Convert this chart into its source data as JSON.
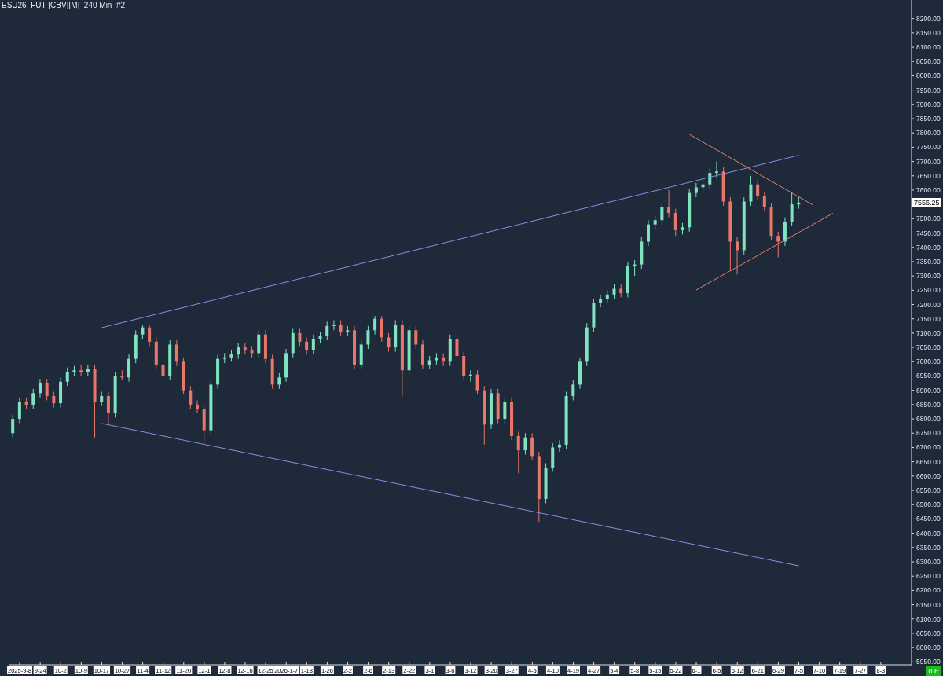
{
  "chart_data": {
    "type": "candlestick",
    "title": "ESU26_FUT [CBV][M]  240 Min  #2",
    "categories": [
      null,
      "2025-9-8",
      null,
      null,
      "9-24",
      null,
      null,
      "10-2",
      null,
      null,
      "10-9",
      null,
      null,
      "10-17",
      null,
      null,
      "10-27",
      null,
      null,
      "11-4",
      null,
      null,
      "11-12",
      null,
      null,
      "11-20",
      null,
      null,
      "12-1",
      null,
      null,
      "12-8",
      null,
      null,
      "12-16",
      null,
      null,
      "12-25",
      null,
      null,
      "2026-1-7",
      null,
      null,
      "1-18",
      null,
      null,
      "1-26",
      null,
      null,
      "2-2",
      null,
      null,
      "2-6",
      null,
      null,
      "2-13",
      null,
      null,
      "2-22",
      null,
      null,
      "3-1",
      null,
      null,
      "3-6",
      null,
      null,
      "3-12",
      null,
      null,
      "3-20",
      null,
      null,
      "3-27",
      null,
      null,
      "4-5",
      null,
      null,
      "4-10",
      null,
      null,
      "4-19",
      null,
      null,
      "4-27",
      null,
      null,
      "5-4",
      null,
      null,
      "5-8",
      null,
      null,
      "5-15",
      null,
      null,
      "5-22",
      null,
      null,
      "6-1",
      null,
      null,
      "6-5",
      null,
      null,
      "6-12",
      null,
      null,
      "6-21",
      null,
      null,
      "6-29",
      null,
      null,
      "7-5",
      null,
      null,
      "7-10",
      null,
      null,
      "7-19",
      null,
      null,
      "7-27",
      null,
      null,
      "8-3",
      null,
      null,
      null,
      null
    ],
    "ohlc": [
      [
        6750,
        6815,
        6735,
        6800
      ],
      [
        6800,
        6875,
        6785,
        6860
      ],
      [
        6860,
        6875,
        6835,
        6850
      ],
      [
        6850,
        6905,
        6835,
        6890
      ],
      [
        6890,
        6940,
        6875,
        6925
      ],
      [
        6925,
        6940,
        6865,
        6880
      ],
      [
        6880,
        6895,
        6840,
        6855
      ],
      [
        6855,
        6945,
        6840,
        6930
      ],
      [
        6930,
        6980,
        6915,
        6965
      ],
      [
        6965,
        6985,
        6950,
        6970
      ],
      [
        6970,
        6990,
        6950,
        6965
      ],
      [
        6965,
        6990,
        6950,
        6975
      ],
      [
        6975,
        6990,
        6735,
        6860
      ],
      [
        6860,
        6895,
        6845,
        6880
      ],
      [
        6880,
        6895,
        6780,
        6820
      ],
      [
        6820,
        6965,
        6805,
        6950
      ],
      [
        6950,
        6970,
        6935,
        6945
      ],
      [
        6945,
        7025,
        6930,
        7010
      ],
      [
        7010,
        7110,
        6995,
        7095
      ],
      [
        7095,
        7130,
        7080,
        7120
      ],
      [
        7120,
        7130,
        7055,
        7070
      ],
      [
        7070,
        7085,
        6975,
        6990
      ],
      [
        6990,
        7005,
        6845,
        6950
      ],
      [
        6950,
        7075,
        6935,
        7060
      ],
      [
        7060,
        7075,
        6985,
        7000
      ],
      [
        7000,
        7015,
        6885,
        6900
      ],
      [
        6900,
        6915,
        6835,
        6850
      ],
      [
        6850,
        6865,
        6820,
        6835
      ],
      [
        6835,
        6850,
        6715,
        6760
      ],
      [
        6760,
        6935,
        6745,
        6920
      ],
      [
        6920,
        7025,
        6905,
        7010
      ],
      [
        7010,
        7030,
        6995,
        7015
      ],
      [
        7015,
        7040,
        7000,
        7025
      ],
      [
        7025,
        7065,
        7010,
        7050
      ],
      [
        7050,
        7065,
        7025,
        7040
      ],
      [
        7040,
        7055,
        7015,
        7030
      ],
      [
        7030,
        7110,
        7015,
        7095
      ],
      [
        7095,
        7110,
        6995,
        7010
      ],
      [
        7010,
        7025,
        6905,
        6920
      ],
      [
        6920,
        6960,
        6905,
        6945
      ],
      [
        6945,
        7045,
        6930,
        7030
      ],
      [
        7030,
        7115,
        7015,
        7100
      ],
      [
        7100,
        7115,
        7055,
        7070
      ],
      [
        7070,
        7085,
        7025,
        7040
      ],
      [
        7040,
        7095,
        7025,
        7080
      ],
      [
        7080,
        7105,
        7065,
        7090
      ],
      [
        7090,
        7140,
        7075,
        7125
      ],
      [
        7125,
        7145,
        7110,
        7130
      ],
      [
        7130,
        7145,
        7090,
        7105
      ],
      [
        7105,
        7125,
        7090,
        7110
      ],
      [
        7110,
        7125,
        6975,
        6990
      ],
      [
        6990,
        7075,
        6975,
        7060
      ],
      [
        7060,
        7125,
        7045,
        7110
      ],
      [
        7110,
        7160,
        7095,
        7150
      ],
      [
        7150,
        7160,
        7070,
        7085
      ],
      [
        7085,
        7100,
        7035,
        7050
      ],
      [
        7050,
        7145,
        7035,
        7130
      ],
      [
        7130,
        7145,
        6880,
        6970
      ],
      [
        6970,
        7125,
        6955,
        7110
      ],
      [
        7110,
        7125,
        7045,
        7060
      ],
      [
        7060,
        7075,
        6975,
        6990
      ],
      [
        6990,
        7020,
        6975,
        7005
      ],
      [
        7005,
        7030,
        6990,
        7015
      ],
      [
        7015,
        7030,
        6985,
        7000
      ],
      [
        7000,
        7095,
        6985,
        7080
      ],
      [
        7080,
        7095,
        7005,
        7020
      ],
      [
        7020,
        7035,
        6935,
        6950
      ],
      [
        6950,
        6970,
        6930,
        6955
      ],
      [
        6955,
        6970,
        6885,
        6900
      ],
      [
        6900,
        6915,
        6710,
        6780
      ],
      [
        6780,
        6905,
        6765,
        6890
      ],
      [
        6890,
        6905,
        6785,
        6800
      ],
      [
        6800,
        6875,
        6785,
        6860
      ],
      [
        6860,
        6875,
        6725,
        6740
      ],
      [
        6740,
        6755,
        6610,
        6690
      ],
      [
        6690,
        6750,
        6675,
        6735
      ],
      [
        6735,
        6750,
        6655,
        6670
      ],
      [
        6670,
        6685,
        6440,
        6520
      ],
      [
        6520,
        6645,
        6505,
        6630
      ],
      [
        6630,
        6715,
        6615,
        6700
      ],
      [
        6700,
        6725,
        6685,
        6710
      ],
      [
        6710,
        6895,
        6695,
        6880
      ],
      [
        6880,
        6935,
        6865,
        6920
      ],
      [
        6920,
        7015,
        6905,
        7000
      ],
      [
        7000,
        7135,
        6985,
        7120
      ],
      [
        7120,
        7220,
        7105,
        7205
      ],
      [
        7205,
        7235,
        7190,
        7220
      ],
      [
        7220,
        7250,
        7205,
        7235
      ],
      [
        7235,
        7270,
        7220,
        7255
      ],
      [
        7255,
        7270,
        7225,
        7240
      ],
      [
        7240,
        7350,
        7225,
        7335
      ],
      [
        7335,
        7355,
        7300,
        7340
      ],
      [
        7340,
        7435,
        7325,
        7420
      ],
      [
        7420,
        7495,
        7405,
        7480
      ],
      [
        7480,
        7510,
        7465,
        7495
      ],
      [
        7495,
        7555,
        7480,
        7540
      ],
      [
        7540,
        7600,
        7505,
        7520
      ],
      [
        7520,
        7535,
        7440,
        7460
      ],
      [
        7460,
        7485,
        7445,
        7470
      ],
      [
        7470,
        7605,
        7455,
        7590
      ],
      [
        7590,
        7625,
        7575,
        7610
      ],
      [
        7610,
        7640,
        7595,
        7620
      ],
      [
        7620,
        7675,
        7605,
        7660
      ],
      [
        7660,
        7700,
        7645,
        7665
      ],
      [
        7665,
        7680,
        7545,
        7560
      ],
      [
        7560,
        7575,
        7320,
        7420
      ],
      [
        7420,
        7435,
        7305,
        7390
      ],
      [
        7390,
        7575,
        7375,
        7560
      ],
      [
        7560,
        7650,
        7545,
        7620
      ],
      [
        7620,
        7635,
        7565,
        7580
      ],
      [
        7580,
        7595,
        7525,
        7540
      ],
      [
        7540,
        7555,
        7425,
        7440
      ],
      [
        7440,
        7455,
        7365,
        7420
      ],
      [
        7420,
        7505,
        7405,
        7490
      ],
      [
        7490,
        7590,
        7475,
        7550
      ],
      [
        7550,
        7580,
        7535,
        7556.25
      ],
      null,
      null,
      null,
      null,
      null,
      null,
      null,
      null,
      null,
      null,
      null,
      null,
      null,
      null,
      null,
      null
    ],
    "colors": [
      "#7fe3c0",
      "#7fe3c0",
      "#e8776a",
      "#7fe3c0",
      "#7fe3c0",
      "#e8776a",
      "#e8776a",
      "#7fe3c0",
      "#7fe3c0",
      "#7fe3c0",
      "#e8776a",
      "#7fe3c0",
      "#e8776a",
      "#7fe3c0",
      "#e8776a",
      "#7fe3c0",
      "#e8776a",
      "#7fe3c0",
      "#7fe3c0",
      "#7fe3c0",
      "#e8776a",
      "#e8776a",
      "#e8776a",
      "#7fe3c0",
      "#e8776a",
      "#e8776a",
      "#e8776a",
      "#e8776a",
      "#e8776a",
      "#7fe3c0",
      "#7fe3c0",
      "#7fe3c0",
      "#7fe3c0",
      "#7fe3c0",
      "#e8776a",
      "#e8776a",
      "#7fe3c0",
      "#e8776a",
      "#e8776a",
      "#7fe3c0",
      "#7fe3c0",
      "#7fe3c0",
      "#e8776a",
      "#e8776a",
      "#7fe3c0",
      "#7fe3c0",
      "#7fe3c0",
      "#7fe3c0",
      "#e8776a",
      "#7fe3c0",
      "#e8776a",
      "#7fe3c0",
      "#7fe3c0",
      "#7fe3c0",
      "#e8776a",
      "#e8776a",
      "#7fe3c0",
      "#e8776a",
      "#7fe3c0",
      "#e8776a",
      "#e8776a",
      "#7fe3c0",
      "#7fe3c0",
      "#e8776a",
      "#7fe3c0",
      "#e8776a",
      "#e8776a",
      "#7fe3c0",
      "#e8776a",
      "#e8776a",
      "#7fe3c0",
      "#e8776a",
      "#7fe3c0",
      "#e8776a",
      "#e8776a",
      "#7fe3c0",
      "#e8776a",
      "#e8776a",
      "#7fe3c0",
      "#7fe3c0",
      "#7fe3c0",
      "#7fe3c0",
      "#7fe3c0",
      "#7fe3c0",
      "#7fe3c0",
      "#7fe3c0",
      "#7fe3c0",
      "#7fe3c0",
      "#7fe3c0",
      "#e8776a",
      "#7fe3c0",
      "#7fe3c0",
      "#7fe3c0",
      "#7fe3c0",
      "#7fe3c0",
      "#7fe3c0",
      "#e8776a",
      "#e8776a",
      "#7fe3c0",
      "#7fe3c0",
      "#7fe3c0",
      "#7fe3c0",
      "#7fe3c0",
      "#7fe3c0",
      "#e8776a",
      "#e8776a",
      "#e8776a",
      "#7fe3c0",
      "#7fe3c0",
      "#e8776a",
      "#e8776a",
      "#e8776a",
      "#e8776a",
      "#7fe3c0",
      "#7fe3c0",
      "#7fe3c0",
      null,
      null,
      null,
      null,
      null,
      null,
      null,
      null,
      null,
      null,
      null,
      null,
      null,
      null,
      null,
      null
    ],
    "series": [
      {
        "type": "line",
        "color": "#8f8ae6",
        "values": [
          null,
          null,
          null,
          null,
          null,
          null,
          null,
          null,
          null,
          null,
          null,
          null,
          null,
          7119,
          null,
          null,
          null,
          null,
          null,
          null,
          null,
          null,
          null,
          null,
          null,
          null,
          null,
          null,
          null,
          null,
          null,
          null,
          null,
          null,
          null,
          null,
          null,
          null,
          null,
          null,
          null,
          null,
          null,
          null,
          null,
          null,
          null,
          null,
          null,
          null,
          null,
          null,
          null,
          null,
          null,
          null,
          null,
          null,
          null,
          null,
          null,
          null,
          null,
          null,
          null,
          null,
          null,
          null,
          null,
          null,
          null,
          null,
          null,
          null,
          null,
          null,
          null,
          null,
          null,
          null,
          null,
          null,
          null,
          null,
          null,
          null,
          null,
          null,
          null,
          null,
          null,
          null,
          null,
          null,
          null,
          null,
          null,
          null,
          null,
          null,
          null,
          null,
          null,
          null,
          null,
          null,
          null,
          null,
          null,
          null,
          null,
          null,
          null,
          null,
          null,
          7722,
          null,
          null,
          null,
          null,
          null,
          null,
          null,
          null,
          null,
          null,
          null,
          null,
          null,
          null,
          null,
          null
        ]
      },
      {
        "type": "line",
        "color": "#8f8ae6",
        "values": [
          null,
          null,
          null,
          null,
          null,
          null,
          null,
          null,
          null,
          null,
          null,
          null,
          null,
          6784,
          null,
          null,
          null,
          null,
          null,
          null,
          null,
          null,
          null,
          null,
          null,
          null,
          null,
          null,
          null,
          null,
          null,
          null,
          null,
          null,
          null,
          null,
          null,
          null,
          null,
          null,
          null,
          null,
          null,
          null,
          null,
          null,
          null,
          null,
          null,
          null,
          null,
          null,
          null,
          null,
          null,
          null,
          null,
          null,
          null,
          null,
          null,
          null,
          null,
          null,
          null,
          null,
          null,
          null,
          null,
          null,
          null,
          null,
          null,
          null,
          null,
          null,
          null,
          null,
          null,
          null,
          null,
          null,
          null,
          null,
          null,
          null,
          null,
          null,
          null,
          null,
          null,
          null,
          null,
          null,
          null,
          null,
          null,
          null,
          null,
          null,
          null,
          null,
          null,
          null,
          null,
          null,
          null,
          null,
          null,
          null,
          null,
          null,
          null,
          null,
          null,
          6286,
          null,
          null,
          null,
          null,
          null,
          null,
          null,
          null,
          null,
          null,
          null,
          null,
          null,
          null,
          null,
          null
        ]
      },
      {
        "type": "line",
        "color": "#e8806a",
        "values": [
          null,
          null,
          null,
          null,
          null,
          null,
          null,
          null,
          null,
          null,
          null,
          null,
          null,
          null,
          null,
          null,
          null,
          null,
          null,
          null,
          null,
          null,
          null,
          null,
          null,
          null,
          null,
          null,
          null,
          null,
          null,
          null,
          null,
          null,
          null,
          null,
          null,
          null,
          null,
          null,
          null,
          null,
          null,
          null,
          null,
          null,
          null,
          null,
          null,
          null,
          null,
          null,
          null,
          null,
          null,
          null,
          null,
          null,
          null,
          null,
          null,
          null,
          null,
          null,
          null,
          null,
          null,
          null,
          null,
          null,
          null,
          null,
          null,
          null,
          null,
          null,
          null,
          null,
          null,
          null,
          null,
          null,
          null,
          null,
          null,
          null,
          null,
          null,
          null,
          null,
          null,
          null,
          null,
          null,
          null,
          null,
          null,
          null,
          null,
          7795,
          null,
          null,
          null,
          null,
          null,
          null,
          null,
          null,
          null,
          null,
          null,
          null,
          null,
          null,
          null,
          null,
          null,
          7549,
          null,
          null,
          null,
          null,
          null,
          null,
          null,
          null,
          null,
          null,
          null,
          null,
          null,
          null
        ]
      },
      {
        "type": "line",
        "color": "#e8806a",
        "values": [
          null,
          null,
          null,
          null,
          null,
          null,
          null,
          null,
          null,
          null,
          null,
          null,
          null,
          null,
          null,
          null,
          null,
          null,
          null,
          null,
          null,
          null,
          null,
          null,
          null,
          null,
          null,
          null,
          null,
          null,
          null,
          null,
          null,
          null,
          null,
          null,
          null,
          null,
          null,
          null,
          null,
          null,
          null,
          null,
          null,
          null,
          null,
          null,
          null,
          null,
          null,
          null,
          null,
          null,
          null,
          null,
          null,
          null,
          null,
          null,
          null,
          null,
          null,
          null,
          null,
          null,
          null,
          null,
          null,
          null,
          null,
          null,
          null,
          null,
          null,
          null,
          null,
          null,
          null,
          null,
          null,
          null,
          null,
          null,
          null,
          null,
          null,
          null,
          null,
          null,
          null,
          null,
          null,
          null,
          null,
          null,
          null,
          null,
          null,
          null,
          7251,
          null,
          null,
          null,
          null,
          null,
          null,
          null,
          null,
          null,
          null,
          null,
          null,
          null,
          null,
          null,
          null,
          null,
          null,
          null,
          7519,
          null,
          null,
          null,
          null,
          null,
          null,
          null,
          null,
          null,
          null,
          null
        ]
      }
    ],
    "ylim": [
      5940,
      8265
    ],
    "yticks": [
      {
        "value": 5950,
        "label": "5950.00"
      },
      {
        "value": 6000,
        "label": "6000.00"
      },
      {
        "value": 6050,
        "label": "6050.00"
      },
      {
        "value": 6100,
        "label": "6100.00"
      },
      {
        "value": 6150,
        "label": "6150.00"
      },
      {
        "value": 6200,
        "label": "6200.00"
      },
      {
        "value": 6250,
        "label": "6250.00"
      },
      {
        "value": 6300,
        "label": "6300.00"
      },
      {
        "value": 6350,
        "label": "6350.00"
      },
      {
        "value": 6400,
        "label": "6400.00"
      },
      {
        "value": 6450,
        "label": "6450.00"
      },
      {
        "value": 6500,
        "label": "6500.00"
      },
      {
        "value": 6550,
        "label": "6550.00"
      },
      {
        "value": 6600,
        "label": "6600.00"
      },
      {
        "value": 6650,
        "label": "6650.00"
      },
      {
        "value": 6700,
        "label": "6700.00"
      },
      {
        "value": 6750,
        "label": "6750.00"
      },
      {
        "value": 6800,
        "label": "6800.00"
      },
      {
        "value": 6850,
        "label": "6850.00"
      },
      {
        "value": 6900,
        "label": "6900.00"
      },
      {
        "value": 6950,
        "label": "6950.00"
      },
      {
        "value": 7000,
        "label": "7000.00"
      },
      {
        "value": 7050,
        "label": "7050.00"
      },
      {
        "value": 7100,
        "label": "7100.00"
      },
      {
        "value": 7150,
        "label": "7150.00"
      },
      {
        "value": 7200,
        "label": "7200.00"
      },
      {
        "value": 7250,
        "label": "7250.00"
      },
      {
        "value": 7300,
        "label": "7300.00"
      },
      {
        "value": 7350,
        "label": "7350.00"
      },
      {
        "value": 7400,
        "label": "7400.00"
      },
      {
        "value": 7450,
        "label": "7450.00"
      },
      {
        "value": 7500,
        "label": "7500.00"
      },
      {
        "value": 7550,
        "label": null
      },
      {
        "value": 7600,
        "label": "7600.00"
      },
      {
        "value": 7650,
        "label": "7650.00"
      },
      {
        "value": 7700,
        "label": "7700.00"
      },
      {
        "value": 7750,
        "label": "7750.00"
      },
      {
        "value": 7800,
        "label": "7800.00"
      },
      {
        "value": 7850,
        "label": "7850.00"
      },
      {
        "value": 7900,
        "label": "7900.00"
      },
      {
        "value": 7950,
        "label": "7950.00"
      },
      {
        "value": 8000,
        "label": "8000.00"
      },
      {
        "value": 8050,
        "label": "8050.00"
      },
      {
        "value": 8100,
        "label": "8100.00"
      },
      {
        "value": 8150,
        "label": "8150.00"
      },
      {
        "value": 8200,
        "label": "8200.00"
      }
    ],
    "annotations": [
      {
        "text": "7556.25",
        "y": 7556.25
      },
      "0 E"
    ]
  }
}
